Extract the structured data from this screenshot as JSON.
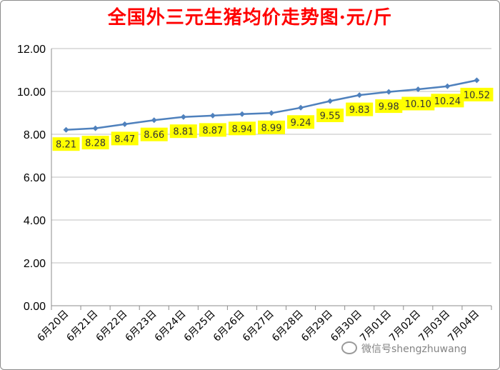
{
  "chart_data": {
    "type": "line",
    "title": "全国外三元生猪均价走势图·元/斤",
    "categories": [
      "6月20日",
      "6月21日",
      "6月22日",
      "6月23日",
      "6月24日",
      "6月25日",
      "6月26日",
      "6月27日",
      "6月28日",
      "6月29日",
      "6月30日",
      "7月01日",
      "7月02日",
      "7月03日",
      "7月04日"
    ],
    "series": [
      {
        "values": [
          8.21,
          8.28,
          8.47,
          8.66,
          8.81,
          8.87,
          8.94,
          8.99,
          9.24,
          9.55,
          9.83,
          9.98,
          10.1,
          10.24,
          10.52
        ]
      }
    ],
    "data_labels": [
      "8.21",
      "8.28",
      "8.47",
      "8.66",
      "8.81",
      "8.87",
      "8.94",
      "8.99",
      "9.24",
      "9.55",
      "9.83",
      "9.98",
      "10.10",
      "10.24",
      "10.52"
    ],
    "yticks": [
      "0.00",
      "2.00",
      "4.00",
      "6.00",
      "8.00",
      "10.00",
      "12.00"
    ],
    "ylim": [
      0,
      12
    ],
    "grid": true,
    "line_color": "#4f81bd",
    "label_bg_color": "#ffff00"
  },
  "watermark": {
    "text": "微信号shengzhuwang"
  }
}
